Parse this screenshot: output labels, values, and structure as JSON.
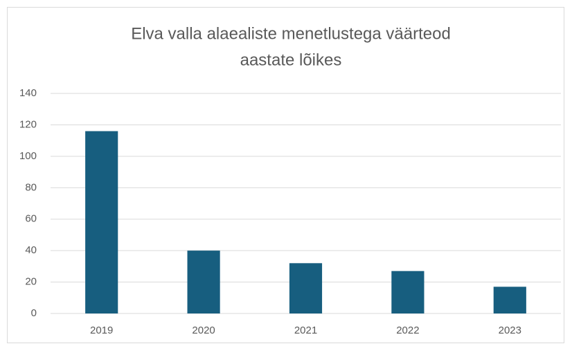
{
  "chart_data": {
    "type": "bar",
    "title": [
      "Elva valla alaealiste menetlustega väärteod",
      "aastate lõikes"
    ],
    "categories": [
      "2019",
      "2020",
      "2021",
      "2022",
      "2023"
    ],
    "values": [
      116,
      40,
      32,
      27,
      17
    ],
    "color": "#175e7f",
    "ylim": [
      0,
      140
    ],
    "yticks": [
      0,
      20,
      40,
      60,
      80,
      100,
      120,
      140
    ],
    "grid": true
  }
}
